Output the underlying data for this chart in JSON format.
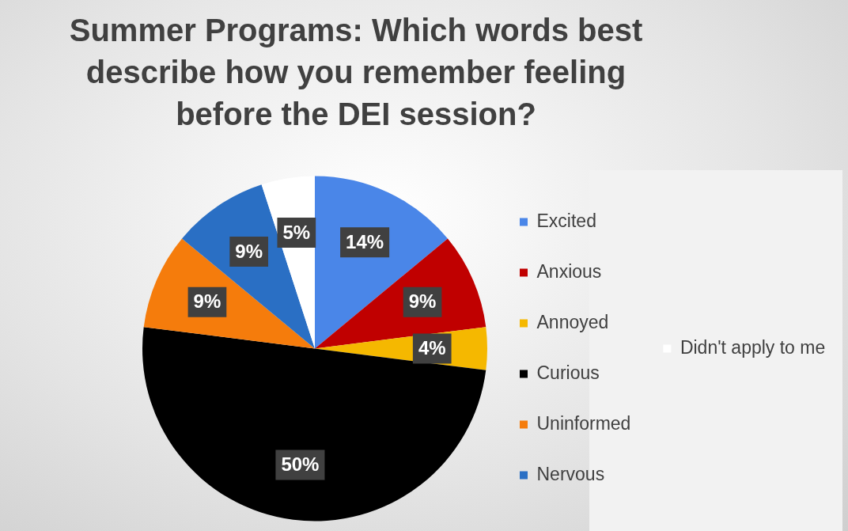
{
  "chart_data": {
    "type": "pie",
    "title": "Summer Programs: Which words best describe how you remember feeling before the DEI session?",
    "categories": [
      "Excited",
      "Anxious",
      "Annoyed",
      "Curious",
      "Uninformed",
      "Nervous",
      "Didn't apply to me"
    ],
    "values": [
      14,
      9,
      4,
      50,
      9,
      9,
      5
    ],
    "colors": [
      "#4a86e8",
      "#c00000",
      "#f5b800",
      "#000000",
      "#f57c0c",
      "#2a6fc4",
      "#ffffff"
    ],
    "value_labels": [
      "14%",
      "9%",
      "4%",
      "50%",
      "9%",
      "9%",
      "5%"
    ],
    "legend": "right"
  }
}
